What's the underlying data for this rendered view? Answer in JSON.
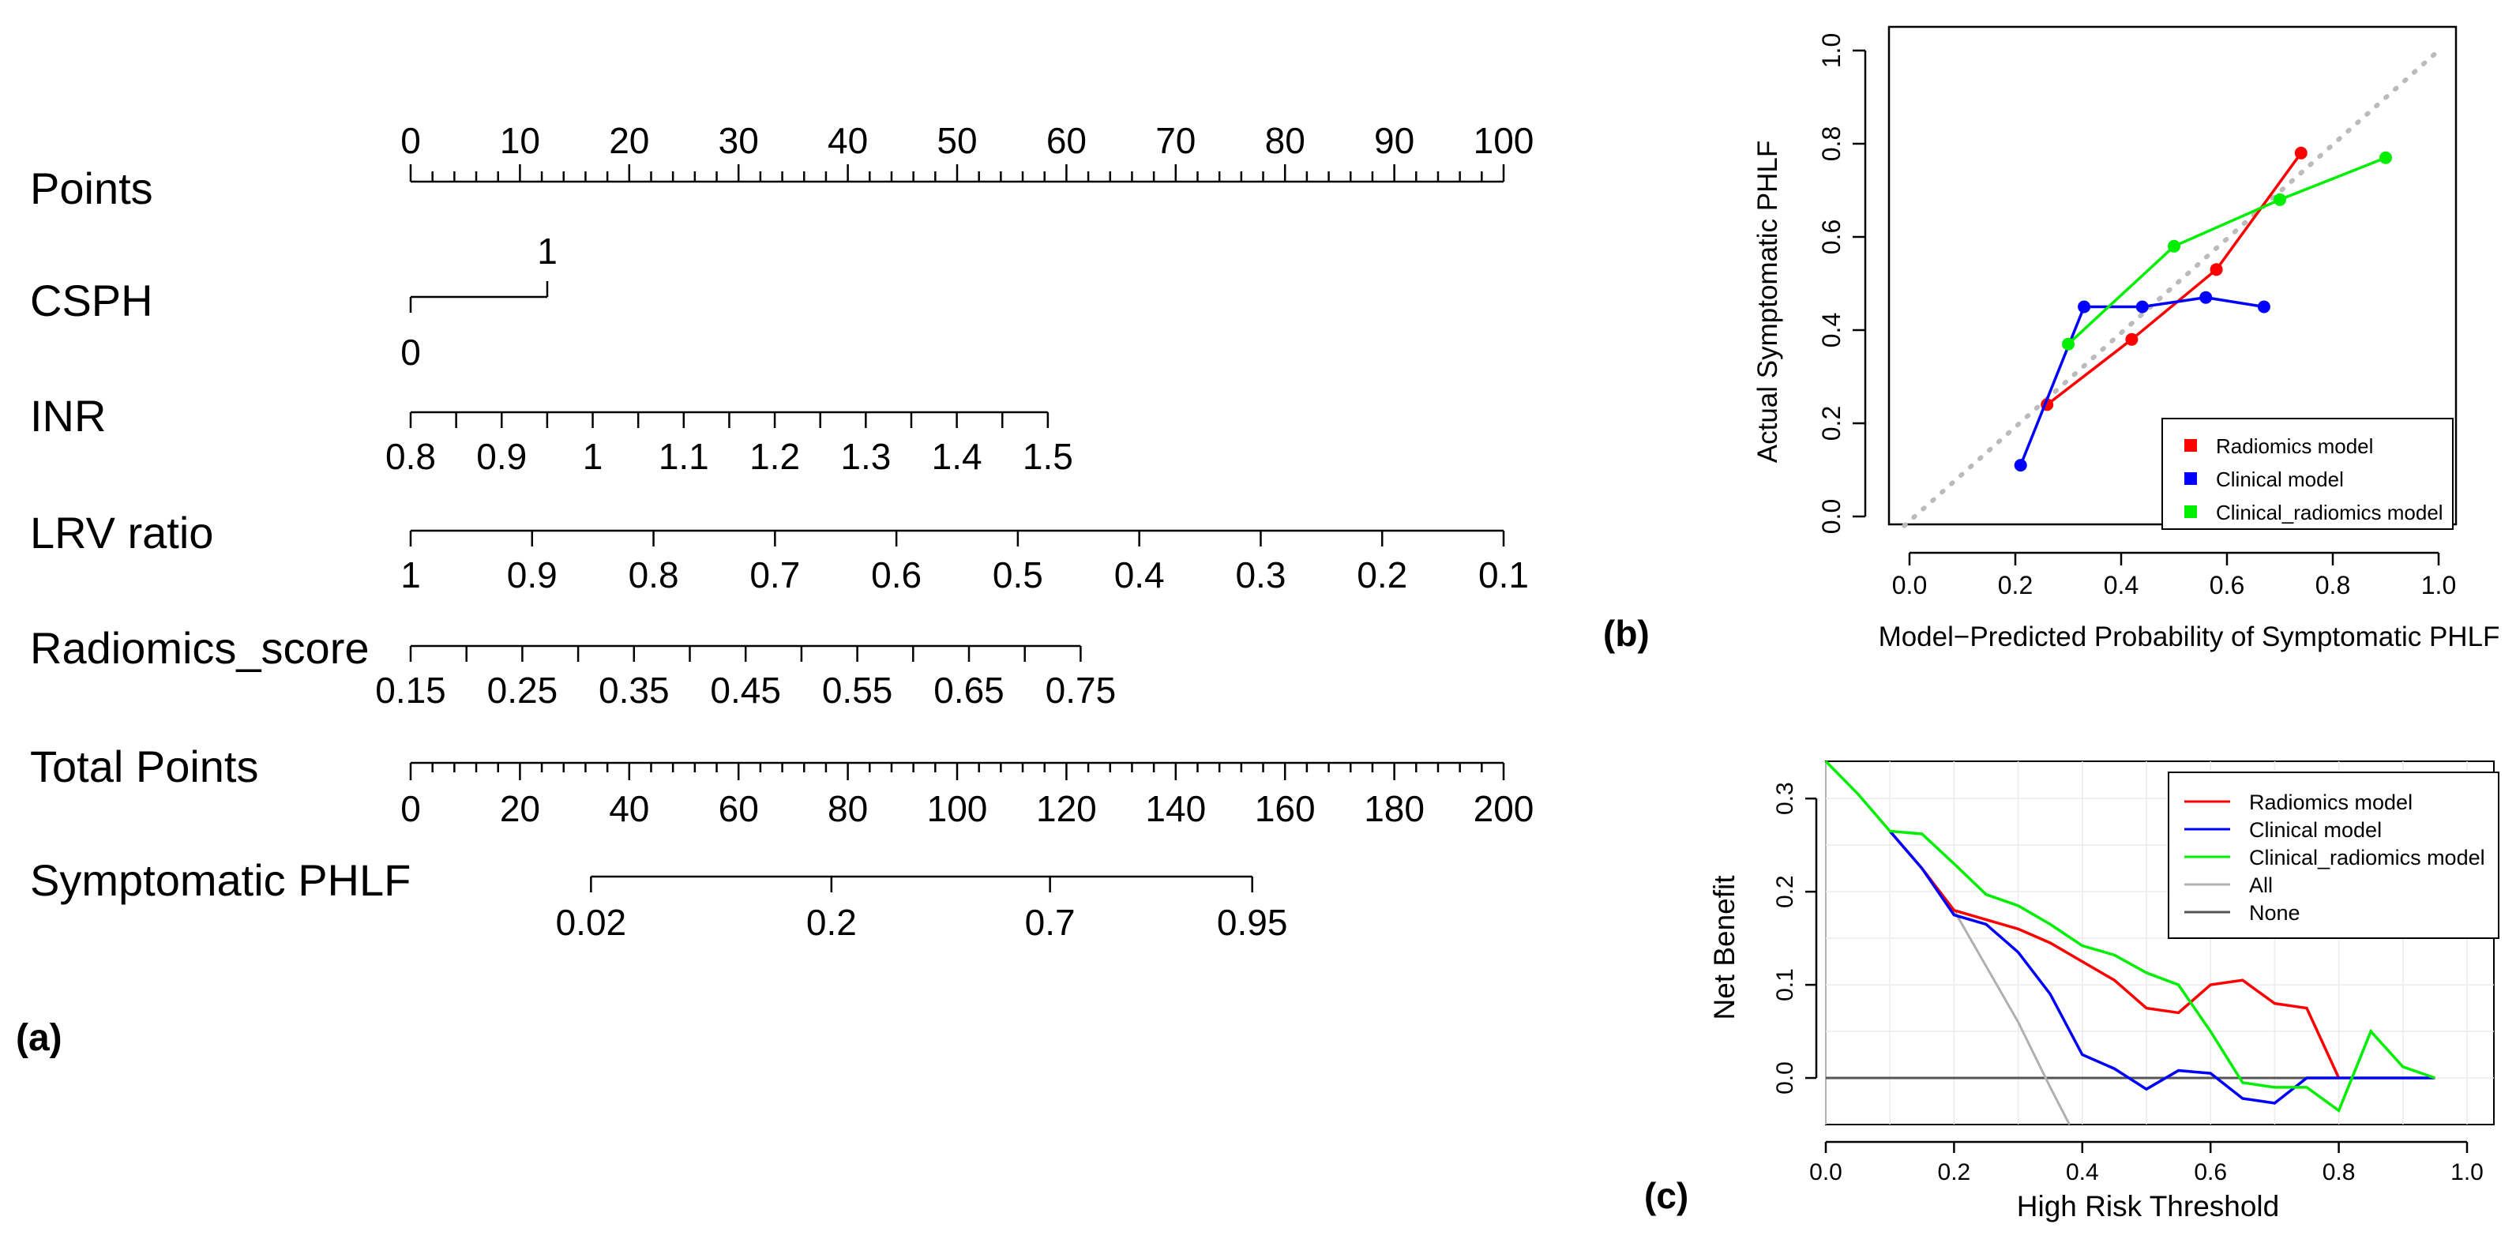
{
  "nomogram": {
    "panel_label": "(a)",
    "rows": [
      {
        "label": "Points",
        "min": 0,
        "max": 100,
        "major": 10,
        "minor": 2,
        "ticks_above": true,
        "tick_labels": [
          "0",
          "10",
          "20",
          "30",
          "40",
          "50",
          "60",
          "70",
          "80",
          "90",
          "100"
        ]
      },
      {
        "label": "CSPH",
        "type": "binary",
        "top_label": "1",
        "bottom_label": "0",
        "points": [
          0,
          12.5
        ]
      },
      {
        "label": "INR",
        "points_start": 0,
        "points_end": 58.3,
        "minor_count": 14,
        "label_side": "below",
        "tick_labels": [
          "0.8",
          "0.9",
          "1",
          "1.1",
          "1.2",
          "1.3",
          "1.4",
          "1.5"
        ]
      },
      {
        "label": "LRV ratio",
        "points_start": 0,
        "points_end": 100,
        "minor_count": 9,
        "label_side": "below",
        "tick_labels": [
          "1",
          "0.9",
          "0.8",
          "0.7",
          "0.6",
          "0.5",
          "0.4",
          "0.3",
          "0.2",
          "0.1"
        ]
      },
      {
        "label": "Radiomics_score",
        "points_start": 0,
        "points_end": 61.3,
        "minor_count": 12,
        "label_side": "below",
        "tick_labels": [
          "0.15",
          "0.25",
          "0.35",
          "0.45",
          "0.55",
          "0.65",
          "0.75"
        ]
      },
      {
        "label": "Total Points",
        "min": 0,
        "max": 200,
        "major": 20,
        "minor": 4,
        "label_side": "below",
        "tick_labels": [
          "0",
          "20",
          "40",
          "60",
          "80",
          "100",
          "120",
          "140",
          "160",
          "180",
          "200"
        ]
      },
      {
        "label": "Symptomatic PHLF",
        "label_side": "below",
        "tick_labels": [
          "0.02",
          "0.2",
          "0.7",
          "0.95"
        ],
        "total_points": [
          33,
          77,
          117,
          154
        ]
      }
    ]
  },
  "chart_data": [
    {
      "panel": "(b)",
      "type": "line",
      "title": "",
      "xlabel": "Model−Predicted Probability of Symptomatic PHLF",
      "ylabel": "Actual Symptomatic PHLF",
      "xlim": [
        0,
        1
      ],
      "ylim": [
        0,
        1
      ],
      "xticks": [
        "0.0",
        "0.2",
        "0.4",
        "0.6",
        "0.8",
        "1.0"
      ],
      "yticks": [
        "0.0",
        "0.2",
        "0.4",
        "0.6",
        "0.8",
        "1.0"
      ],
      "legend_position": "bottom-right",
      "reference_line": {
        "style": "dotted",
        "color": "#bbbbbb",
        "x": [
          0,
          1
        ],
        "y": [
          0,
          1
        ]
      },
      "series": [
        {
          "name": "Radiomics model",
          "color": "#ff0000",
          "x": [
            0.26,
            0.42,
            0.58,
            0.74
          ],
          "y": [
            0.24,
            0.38,
            0.53,
            0.78
          ]
        },
        {
          "name": "Clinical model",
          "color": "#0000ff",
          "x": [
            0.21,
            0.33,
            0.44,
            0.56,
            0.67
          ],
          "y": [
            0.11,
            0.45,
            0.45,
            0.47,
            0.45
          ]
        },
        {
          "name": "Clinical_radiomics model",
          "color": "#00ee00",
          "x": [
            0.3,
            0.5,
            0.7,
            0.9
          ],
          "y": [
            0.37,
            0.58,
            0.68,
            0.77
          ]
        }
      ]
    },
    {
      "panel": "(c)",
      "type": "line",
      "title": "",
      "xlabel": "High Risk Threshold",
      "ylabel": "Net Benefit",
      "xlim": [
        0,
        1
      ],
      "ylim": [
        -0.05,
        0.34
      ],
      "xticks": [
        "0.0",
        "0.2",
        "0.4",
        "0.6",
        "0.8",
        "1.0"
      ],
      "yticks": [
        "0.0",
        "0.1",
        "0.2",
        "0.3"
      ],
      "legend_position": "top-right",
      "grid": true,
      "series": [
        {
          "name": "Radiomics model",
          "color": "#ff0000",
          "x": [
            0.1,
            0.15,
            0.2,
            0.25,
            0.3,
            0.35,
            0.4,
            0.45,
            0.5,
            0.55,
            0.6,
            0.65,
            0.7,
            0.75,
            0.8
          ],
          "y": [
            0.265,
            0.225,
            0.18,
            0.17,
            0.16,
            0.145,
            0.125,
            0.105,
            0.075,
            0.07,
            0.1,
            0.105,
            0.08,
            0.075,
            0
          ]
        },
        {
          "name": "Clinical model",
          "color": "#0000ff",
          "x": [
            0.1,
            0.15,
            0.2,
            0.25,
            0.3,
            0.35,
            0.4,
            0.45,
            0.5,
            0.55,
            0.6,
            0.65,
            0.7,
            0.75,
            0.8,
            0.85,
            0.9,
            0.95
          ],
          "y": [
            0.265,
            0.225,
            0.175,
            0.165,
            0.135,
            0.09,
            0.025,
            0.01,
            -0.012,
            0.008,
            0.005,
            -0.022,
            -0.027,
            0,
            0,
            0,
            0,
            0
          ]
        },
        {
          "name": "Clinical_radiomics model",
          "color": "#00ee00",
          "x": [
            0,
            0.05,
            0.1,
            0.15,
            0.2,
            0.25,
            0.3,
            0.35,
            0.4,
            0.45,
            0.5,
            0.55,
            0.6,
            0.65,
            0.7,
            0.75,
            0.8,
            0.85,
            0.9,
            0.95
          ],
          "y": [
            0.34,
            0.305,
            0.265,
            0.262,
            0.23,
            0.197,
            0.185,
            0.165,
            0.142,
            0.132,
            0.113,
            0.1,
            0.05,
            -0.005,
            -0.01,
            -0.01,
            -0.035,
            0.05,
            0.012,
            0
          ]
        },
        {
          "name": "All",
          "color": "#b0b0b0",
          "x": [
            0.1,
            0.15,
            0.2,
            0.25,
            0.3,
            0.35,
            0.38
          ],
          "y": [
            0.265,
            0.225,
            0.18,
            0.12,
            0.06,
            -0.01,
            -0.05
          ]
        },
        {
          "name": "None",
          "color": "#555555",
          "x": [
            0,
            0.95
          ],
          "y": [
            0,
            0
          ]
        }
      ]
    }
  ]
}
